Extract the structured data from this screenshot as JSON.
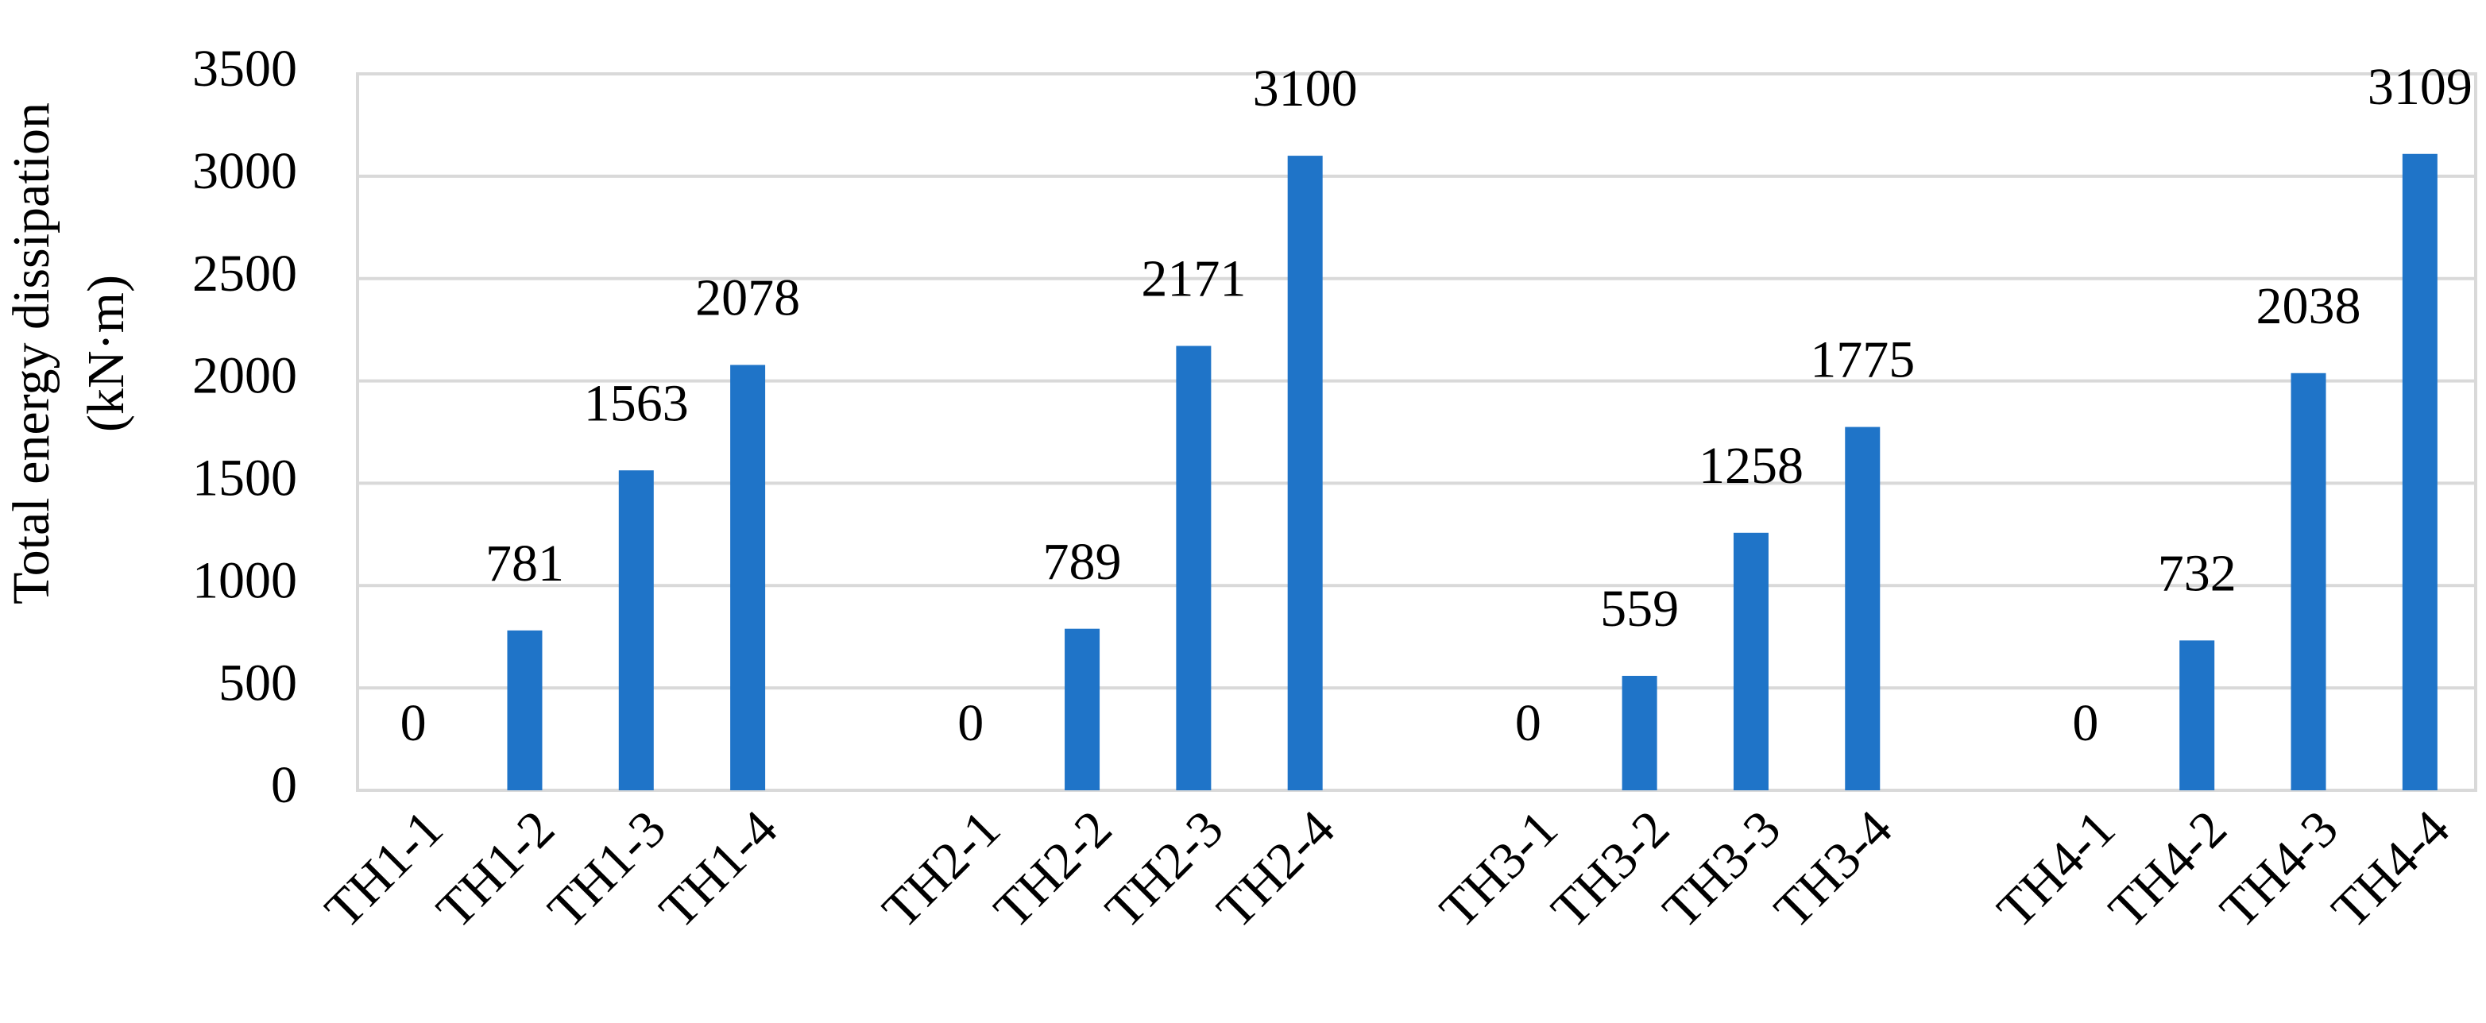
{
  "chart_data": {
    "type": "bar",
    "ylabel": [
      "Total energy dissipation",
      "(kN·m)"
    ],
    "categories": [
      "TH1-1",
      "TH1-2",
      "TH1-3",
      "TH1-4",
      null,
      "TH2-1",
      "TH2-2",
      "TH2-3",
      "TH2-4",
      null,
      "TH3-1",
      "TH3-2",
      "TH3-3",
      "TH3-4",
      null,
      "TH4-1",
      "TH4-2",
      "TH4-3",
      "TH4-4"
    ],
    "values": [
      0,
      781,
      1563,
      2078,
      null,
      0,
      789,
      2171,
      3100,
      null,
      0,
      559,
      1258,
      1775,
      null,
      0,
      732,
      2038,
      3109
    ],
    "color": "#1f74c8",
    "ylim": [
      0,
      3500
    ],
    "yticks": [
      0,
      500,
      1000,
      1500,
      2000,
      2500,
      3000,
      3500
    ],
    "grid": true
  }
}
